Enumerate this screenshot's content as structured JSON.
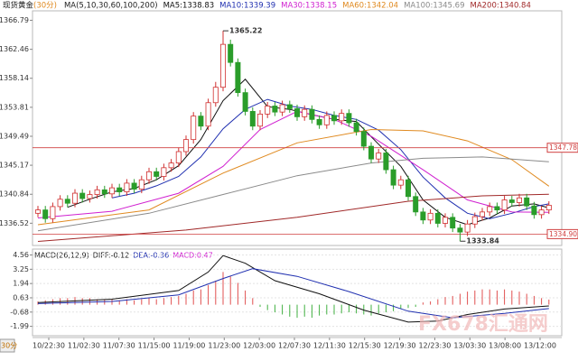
{
  "chart_data": {
    "type": "candlestick",
    "title": "现货黄金",
    "period": "(30分)",
    "ma_params": "MA(5,10,30,60,100,200)",
    "up_color": "#d03030",
    "down_color": "#2a9d2a",
    "ylim": [
      1333.2,
      1368.2
    ],
    "yticks": [
      1366.79,
      1362.46,
      1358.14,
      1353.81,
      1349.49,
      1345.17,
      1340.84,
      1336.52
    ],
    "open": [
      1338.0,
      1338.5,
      1337.2,
      1339.0,
      1340.1,
      1339.5,
      1341.0,
      1340.2,
      1340.8,
      1341.5,
      1340.9,
      1341.8,
      1341.2,
      1342.5,
      1341.6,
      1343.0,
      1344.2,
      1343.5,
      1344.8,
      1345.5,
      1347.2,
      1349.0,
      1352.5,
      1351.0,
      1354.5,
      1356.8,
      1363.2,
      1360.5,
      1356.0,
      1353.2,
      1351.0,
      1352.8,
      1354.0,
      1353.1,
      1354.2,
      1353.6,
      1352.4,
      1353.5,
      1352.0,
      1351.2,
      1352.6,
      1351.8,
      1352.9,
      1351.5,
      1350.2,
      1348.0,
      1346.1,
      1347.0,
      1344.5,
      1342.2,
      1343.0,
      1340.5,
      1338.2,
      1337.0,
      1338.0,
      1336.5,
      1337.4,
      1335.8,
      1335.2,
      1336.4,
      1337.5,
      1338.2,
      1339.0,
      1338.5,
      1340.0,
      1339.6,
      1340.3,
      1339.1,
      1337.8,
      1338.5
    ],
    "high": [
      1339.1,
      1339.1,
      1339.6,
      1340.7,
      1340.7,
      1341.6,
      1341.6,
      1341.4,
      1342.1,
      1342.1,
      1342.4,
      1342.4,
      1343.1,
      1343.1,
      1343.6,
      1344.8,
      1344.8,
      1345.4,
      1346.1,
      1347.8,
      1349.6,
      1353.1,
      1353.1,
      1355.1,
      1357.6,
      1365.22,
      1363.9,
      1361.1,
      1356.6,
      1353.8,
      1353.4,
      1354.6,
      1354.6,
      1354.8,
      1354.8,
      1354.2,
      1354.1,
      1354.1,
      1352.6,
      1353.2,
      1353.2,
      1353.5,
      1353.5,
      1352.1,
      1350.8,
      1348.6,
      1347.6,
      1347.6,
      1345.1,
      1343.6,
      1343.6,
      1341.1,
      1338.8,
      1338.6,
      1338.6,
      1338.0,
      1338.0,
      1336.4,
      1337.0,
      1338.1,
      1338.8,
      1339.6,
      1339.6,
      1340.6,
      1340.6,
      1340.9,
      1340.9,
      1339.7,
      1339.1,
      1339.8
    ],
    "low": [
      1337.4,
      1336.6,
      1336.6,
      1338.4,
      1338.9,
      1338.9,
      1339.6,
      1339.6,
      1340.2,
      1340.3,
      1340.3,
      1340.6,
      1340.6,
      1341.0,
      1341.0,
      1342.4,
      1342.9,
      1342.9,
      1344.2,
      1344.9,
      1346.6,
      1348.4,
      1350.4,
      1350.4,
      1353.9,
      1356.2,
      1359.9,
      1355.4,
      1352.6,
      1350.4,
      1350.4,
      1352.2,
      1352.5,
      1352.5,
      1353.0,
      1351.8,
      1351.8,
      1351.4,
      1350.6,
      1350.6,
      1351.2,
      1351.2,
      1350.9,
      1349.6,
      1347.4,
      1345.5,
      1345.5,
      1343.9,
      1341.6,
      1341.6,
      1339.9,
      1337.6,
      1336.4,
      1336.4,
      1335.9,
      1335.9,
      1335.2,
      1333.84,
      1334.6,
      1335.8,
      1336.9,
      1337.6,
      1337.9,
      1337.9,
      1339.0,
      1339.0,
      1338.5,
      1337.2,
      1337.2,
      1337.9
    ],
    "close": [
      1338.5,
      1337.2,
      1339.0,
      1340.1,
      1339.5,
      1341.0,
      1340.2,
      1340.8,
      1341.5,
      1340.9,
      1341.8,
      1341.2,
      1342.5,
      1341.6,
      1343.0,
      1344.2,
      1343.5,
      1344.8,
      1345.5,
      1347.2,
      1349.0,
      1352.5,
      1351.0,
      1354.5,
      1356.8,
      1363.2,
      1360.5,
      1356.0,
      1353.2,
      1351.0,
      1352.8,
      1354.0,
      1353.1,
      1354.2,
      1353.6,
      1352.4,
      1353.5,
      1352.0,
      1351.2,
      1352.6,
      1351.8,
      1352.9,
      1351.5,
      1350.2,
      1348.0,
      1346.1,
      1347.0,
      1344.5,
      1342.2,
      1343.0,
      1340.5,
      1338.2,
      1337.0,
      1338.0,
      1336.5,
      1337.4,
      1335.8,
      1335.2,
      1336.4,
      1337.5,
      1338.2,
      1339.0,
      1338.5,
      1340.0,
      1339.6,
      1340.3,
      1339.1,
      1337.8,
      1338.5,
      1339.2
    ],
    "ma_lines": [
      {
        "label": "MA5:1338.83",
        "color": "#111111",
        "x": [
          4,
          7,
          10,
          13,
          16,
          19,
          22,
          25,
          28,
          31,
          34,
          37,
          40,
          43,
          46,
          49,
          52,
          55,
          58,
          61,
          64,
          67,
          69
        ],
        "values": [
          1338.9,
          1340.1,
          1341.2,
          1341.7,
          1343.0,
          1345.1,
          1349.0,
          1354.8,
          1358.0,
          1353.9,
          1353.5,
          1352.7,
          1352.0,
          1351.7,
          1348.3,
          1345.0,
          1340.0,
          1337.4,
          1336.3,
          1337.3,
          1339.1,
          1339.4,
          1338.8
        ]
      },
      {
        "label": "MA10:1339.39",
        "color": "#2030b0",
        "x": [
          10,
          13,
          16,
          19,
          22,
          25,
          28,
          31,
          34,
          37,
          40,
          43,
          46,
          49,
          52,
          55,
          58,
          61,
          64,
          67,
          69
        ],
        "values": [
          1340.3,
          1341.0,
          1342.1,
          1343.5,
          1346.4,
          1350.6,
          1353.5,
          1355.0,
          1354.0,
          1353.5,
          1352.6,
          1352.0,
          1350.4,
          1347.5,
          1343.4,
          1340.3,
          1338.0,
          1337.2,
          1338.0,
          1339.0,
          1339.4
        ]
      },
      {
        "label": "MA30:1338.15",
        "color": "#d020d0",
        "x": [
          0,
          10,
          19,
          25,
          30,
          35,
          40,
          45,
          52,
          58,
          64,
          69
        ],
        "values": [
          1337.3,
          1338.3,
          1341.0,
          1345.0,
          1350.5,
          1353.2,
          1352.0,
          1349.5,
          1344.5,
          1340.0,
          1338.2,
          1338.15
        ]
      },
      {
        "label": "MA60:1342.04",
        "color": "#e08a20",
        "x": [
          0,
          15,
          25,
          35,
          45,
          52,
          58,
          64,
          69
        ],
        "values": [
          1336.3,
          1338.5,
          1344.0,
          1348.5,
          1350.5,
          1350.3,
          1348.8,
          1346.0,
          1342.04
        ]
      },
      {
        "label": "MA100:1345.69",
        "color": "#8a8a8a",
        "x": [
          0,
          15,
          25,
          35,
          45,
          52,
          60,
          69
        ],
        "values": [
          1335.4,
          1338.0,
          1340.8,
          1343.6,
          1345.5,
          1346.2,
          1346.4,
          1345.69
        ]
      },
      {
        "label": "MA200:1340.84",
        "color": "#a02828",
        "x": [
          0,
          20,
          35,
          50,
          60,
          69
        ],
        "values": [
          1333.8,
          1335.5,
          1337.4,
          1339.8,
          1340.6,
          1340.84
        ]
      }
    ],
    "hlines": [
      {
        "value": 1347.78,
        "label": "1347.78",
        "color": "#d04040"
      },
      {
        "value": 1334.9,
        "label": "1334.90",
        "color": "#d04040"
      }
    ],
    "x_labels": [
      "10/22:30",
      "11/02:30",
      "11/07:30",
      "11/15:00",
      "11/19:00",
      "11/23:00",
      "12/03:00",
      "12/07:30",
      "12/11:30",
      "12/15:30",
      "12/19:30",
      "12/23:30",
      "13/03:30",
      "13/08:00",
      "13/12:00"
    ],
    "period_label": "30分",
    "watermark": "FX678汇通网",
    "macd": {
      "title": "MACD(26,12,9)",
      "diff_label": "DIFF:-0.12",
      "dea_label": "DEA:-0.36",
      "macd_label": "MACD:0.47",
      "ylim": [
        -2.85,
        5.1
      ],
      "yticks": [
        4.56,
        3.25,
        1.94,
        0.63,
        -0.68,
        -1.99
      ],
      "up_color": "#e05050",
      "down_color": "#40b040",
      "hist": [
        0.3,
        0.4,
        0.5,
        0.6,
        0.6,
        0.7,
        0.6,
        0.6,
        0.5,
        0.5,
        0.5,
        0.4,
        0.5,
        0.4,
        0.5,
        0.6,
        0.5,
        0.6,
        0.7,
        0.8,
        1.0,
        1.3,
        1.4,
        1.8,
        2.2,
        3.0,
        2.6,
        2.0,
        1.3,
        0.6,
        -0.2,
        -0.5,
        -0.7,
        -0.9,
        -1.1,
        -1.2,
        -1.1,
        -1.2,
        -1.0,
        -0.9,
        -0.9,
        -0.8,
        -0.7,
        -0.8,
        -0.9,
        -1.0,
        -0.8,
        -0.7,
        -0.6,
        -0.4,
        -0.3,
        -0.2,
        0.2,
        0.3,
        0.5,
        0.7,
        0.8,
        1.0,
        1.2,
        1.3,
        1.4,
        1.4,
        1.3,
        1.4,
        1.3,
        1.2,
        1.0,
        0.8,
        0.6,
        0.47
      ],
      "diff": {
        "color": "#111111",
        "x": [
          0,
          10,
          19,
          23,
          25,
          28,
          32,
          38,
          44,
          50,
          54,
          58,
          63,
          69
        ],
        "values": [
          0.2,
          0.5,
          1.3,
          3.0,
          4.5,
          3.8,
          2.2,
          1.0,
          -0.5,
          -1.6,
          -1.5,
          -0.9,
          -0.4,
          -0.12
        ]
      },
      "dea": {
        "color": "#2030b0",
        "x": [
          0,
          10,
          19,
          25,
          29,
          35,
          42,
          50,
          56,
          63,
          69
        ],
        "values": [
          0.1,
          0.3,
          0.9,
          2.4,
          3.3,
          2.6,
          1.2,
          -0.6,
          -1.2,
          -0.8,
          -0.36
        ]
      }
    }
  }
}
